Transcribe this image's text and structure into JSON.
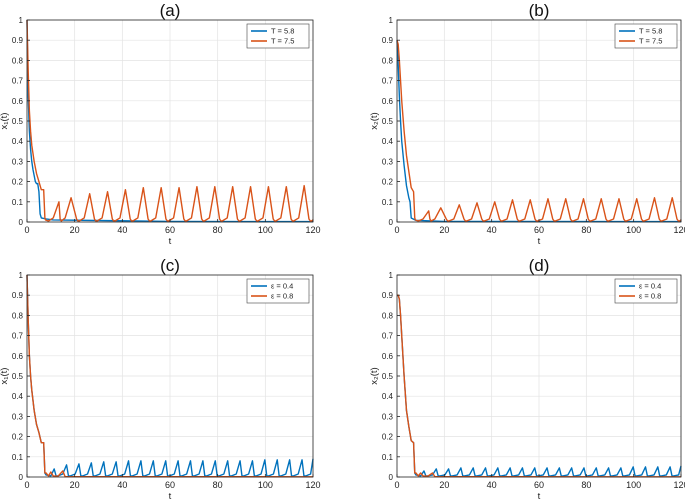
{
  "colors": {
    "series_1": "#0072BD",
    "series_2": "#D95319",
    "grid": "#e3e3e3",
    "axis": "#262626"
  },
  "chart_data": [
    {
      "panel": "(a)",
      "type": "line",
      "xlabel": "t",
      "ylabel": "x₁(t)",
      "xlim": [
        0,
        120
      ],
      "ylim": [
        0,
        1
      ],
      "xticks": [
        0,
        20,
        40,
        60,
        80,
        100,
        120
      ],
      "yticks": [
        0,
        0.1,
        0.2,
        0.3,
        0.4,
        0.5,
        0.6,
        0.7,
        0.8,
        0.9,
        1
      ],
      "grid": true,
      "legend_position": "top-right",
      "series": [
        {
          "name": "T = 5.8",
          "x": [
            0,
            0.5,
            1,
            1.5,
            2,
            2.5,
            3,
            3.5,
            4,
            4.5,
            5,
            5.5,
            6,
            8,
            11,
            60,
            120
          ],
          "y": [
            1,
            0.62,
            0.45,
            0.36,
            0.3,
            0.26,
            0.23,
            0.2,
            0.19,
            0.19,
            0.15,
            0.04,
            0.02,
            0.015,
            0.01,
            0.003,
            0.002
          ]
        },
        {
          "name": "T = 7.5",
          "x": [
            0,
            0.5,
            1,
            1.5,
            2,
            3,
            4,
            5,
            6,
            7,
            7.5,
            7.8,
            9,
            11,
            13.4,
            13.9,
            14.4,
            16,
            18.5,
            20.8,
            21.4,
            21.9,
            24,
            26.3,
            28.3,
            28.9,
            29.4,
            31.5,
            33.8,
            35.8,
            36.4,
            36.9,
            39,
            41.3,
            43.3,
            43.9,
            44.4,
            46.5,
            48.8,
            50.8,
            51.4,
            51.9,
            54,
            56.3,
            58.3,
            58.9,
            59.4,
            61.5,
            63.8,
            65.8,
            66.4,
            66.9,
            69,
            71.3,
            73.3,
            73.9,
            74.4,
            76.5,
            78.8,
            80.8,
            81.4,
            81.9,
            84,
            86.3,
            88.3,
            88.9,
            89.4,
            91.5,
            93.8,
            95.8,
            96.4,
            96.9,
            99,
            101.3,
            103.3,
            103.9,
            104.4,
            106.5,
            108.8,
            110.8,
            111.4,
            111.9,
            114,
            116.3,
            118.3,
            118.9,
            119.4,
            120
          ],
          "y": [
            1,
            0.75,
            0.55,
            0.45,
            0.38,
            0.3,
            0.24,
            0.2,
            0.16,
            0.16,
            0.02,
            0.01,
            0.005,
            0.02,
            0.1,
            0.015,
            0.005,
            0.02,
            0.12,
            0.015,
            0.005,
            0.005,
            0.02,
            0.14,
            0.015,
            0.005,
            0.005,
            0.02,
            0.15,
            0.015,
            0.005,
            0.005,
            0.02,
            0.16,
            0.015,
            0.005,
            0.005,
            0.02,
            0.17,
            0.015,
            0.005,
            0.005,
            0.02,
            0.17,
            0.015,
            0.005,
            0.005,
            0.02,
            0.17,
            0.015,
            0.005,
            0.005,
            0.02,
            0.175,
            0.015,
            0.005,
            0.005,
            0.02,
            0.175,
            0.015,
            0.005,
            0.005,
            0.02,
            0.175,
            0.015,
            0.005,
            0.005,
            0.02,
            0.175,
            0.015,
            0.005,
            0.005,
            0.02,
            0.175,
            0.015,
            0.005,
            0.005,
            0.02,
            0.175,
            0.015,
            0.005,
            0.005,
            0.02,
            0.18,
            0.015,
            0.005,
            0.005,
            0.01
          ]
        }
      ]
    },
    {
      "panel": "(b)",
      "type": "line",
      "xlabel": "t",
      "ylabel": "x₂(t)",
      "xlim": [
        0,
        120
      ],
      "ylim": [
        0,
        1
      ],
      "xticks": [
        0,
        20,
        40,
        60,
        80,
        100,
        120
      ],
      "yticks": [
        0,
        0.1,
        0.2,
        0.3,
        0.4,
        0.5,
        0.6,
        0.7,
        0.8,
        0.9,
        1
      ],
      "grid": true,
      "legend_position": "top-right",
      "series": [
        {
          "name": "T = 5.8",
          "x": [
            0,
            0.5,
            1,
            1.5,
            2,
            3,
            4,
            5,
            5.5,
            6,
            8,
            20,
            120
          ],
          "y": [
            0.9,
            0.78,
            0.62,
            0.5,
            0.4,
            0.28,
            0.18,
            0.12,
            0.1,
            0.02,
            0.008,
            0.003,
            0.002
          ]
        },
        {
          "name": "T = 7.5",
          "x": [
            0,
            0.5,
            1,
            1.5,
            2,
            3,
            4,
            5,
            6,
            7,
            7.5,
            7.8,
            9,
            11,
            13.4,
            13.9,
            14.4,
            16,
            18.5,
            20.8,
            21.4,
            21.9,
            24,
            26.3,
            28.3,
            28.9,
            29.4,
            31.5,
            33.8,
            35.8,
            36.4,
            36.9,
            39,
            41.3,
            43.3,
            43.9,
            44.4,
            46.5,
            48.8,
            50.8,
            51.4,
            51.9,
            54,
            56.3,
            58.3,
            58.9,
            59.4,
            61.5,
            63.8,
            65.8,
            66.4,
            66.9,
            69,
            71.3,
            73.3,
            73.9,
            74.4,
            76.5,
            78.8,
            80.8,
            81.4,
            81.9,
            84,
            86.3,
            88.3,
            88.9,
            89.4,
            91.5,
            93.8,
            95.8,
            96.4,
            96.9,
            99,
            101.3,
            103.3,
            103.9,
            104.4,
            106.5,
            108.8,
            110.8,
            111.4,
            111.9,
            114,
            116.3,
            118.3,
            118.9,
            119.4,
            120
          ],
          "y": [
            0.9,
            0.88,
            0.8,
            0.7,
            0.6,
            0.45,
            0.33,
            0.25,
            0.17,
            0.15,
            0.02,
            0.01,
            0.005,
            0.015,
            0.055,
            0.015,
            0.005,
            0.015,
            0.07,
            0.015,
            0.005,
            0.005,
            0.015,
            0.085,
            0.015,
            0.005,
            0.005,
            0.015,
            0.095,
            0.015,
            0.005,
            0.005,
            0.015,
            0.1,
            0.015,
            0.005,
            0.005,
            0.015,
            0.11,
            0.015,
            0.005,
            0.005,
            0.015,
            0.11,
            0.015,
            0.005,
            0.005,
            0.015,
            0.115,
            0.015,
            0.005,
            0.005,
            0.015,
            0.115,
            0.015,
            0.005,
            0.005,
            0.015,
            0.115,
            0.015,
            0.005,
            0.005,
            0.015,
            0.115,
            0.015,
            0.005,
            0.005,
            0.015,
            0.115,
            0.015,
            0.005,
            0.005,
            0.015,
            0.115,
            0.015,
            0.005,
            0.005,
            0.015,
            0.12,
            0.015,
            0.005,
            0.005,
            0.015,
            0.12,
            0.015,
            0.005,
            0.005,
            0.01
          ]
        }
      ]
    },
    {
      "panel": "(c)",
      "type": "line",
      "xlabel": "t",
      "ylabel": "x₁(t)",
      "xlim": [
        0,
        120
      ],
      "ylim": [
        0,
        1
      ],
      "xticks": [
        0,
        20,
        40,
        60,
        80,
        100,
        120
      ],
      "yticks": [
        0,
        0.1,
        0.2,
        0.3,
        0.4,
        0.5,
        0.6,
        0.7,
        0.8,
        0.9,
        1
      ],
      "grid": true,
      "legend_position": "top-right",
      "series": [
        {
          "name": "ε = 0.4",
          "x": [
            0,
            0.5,
            1,
            1.5,
            2,
            3,
            4,
            5,
            6,
            7,
            7.5,
            8,
            10,
            11.4,
            12.2,
            12.9,
            15,
            16.6,
            17.4,
            18.1,
            20.2,
            21.8,
            22.6,
            23.3,
            25.4,
            27,
            27.8,
            28.5,
            30.6,
            32.2,
            33,
            33.7,
            35.8,
            37.4,
            38.2,
            38.9,
            41,
            42.6,
            43.4,
            44.1,
            46.2,
            47.8,
            48.6,
            49.3,
            51.4,
            53,
            53.8,
            54.5,
            56.6,
            58.2,
            59,
            59.7,
            61.8,
            63.4,
            64.2,
            64.9,
            67,
            68.6,
            69.4,
            70.1,
            72.2,
            73.8,
            74.6,
            75.3,
            77.4,
            79,
            79.8,
            80.5,
            82.6,
            84.2,
            85,
            85.7,
            87.8,
            89.4,
            90.2,
            90.9,
            93,
            94.6,
            95.4,
            96.1,
            98.2,
            99.8,
            100.6,
            101.3,
            103.4,
            105,
            105.8,
            106.5,
            108.6,
            110.2,
            111,
            111.7,
            113.8,
            115.4,
            116.2,
            116.9,
            119,
            120
          ],
          "y": [
            1,
            0.78,
            0.6,
            0.5,
            0.43,
            0.33,
            0.26,
            0.22,
            0.17,
            0.17,
            0.02,
            0.01,
            0.005,
            0.04,
            0.005,
            0.005,
            0.015,
            0.06,
            0.005,
            0.005,
            0.015,
            0.065,
            0.005,
            0.005,
            0.015,
            0.07,
            0.005,
            0.005,
            0.015,
            0.075,
            0.005,
            0.005,
            0.015,
            0.075,
            0.005,
            0.005,
            0.015,
            0.08,
            0.005,
            0.005,
            0.015,
            0.08,
            0.005,
            0.005,
            0.015,
            0.08,
            0.005,
            0.005,
            0.015,
            0.08,
            0.005,
            0.005,
            0.015,
            0.08,
            0.005,
            0.005,
            0.015,
            0.08,
            0.005,
            0.005,
            0.015,
            0.08,
            0.005,
            0.005,
            0.015,
            0.08,
            0.005,
            0.005,
            0.015,
            0.08,
            0.005,
            0.005,
            0.015,
            0.08,
            0.005,
            0.005,
            0.015,
            0.08,
            0.005,
            0.005,
            0.015,
            0.085,
            0.005,
            0.005,
            0.015,
            0.085,
            0.005,
            0.005,
            0.015,
            0.085,
            0.005,
            0.005,
            0.015,
            0.085,
            0.005,
            0.005,
            0.015,
            0.09
          ]
        },
        {
          "name": "ε = 0.8",
          "x": [
            0,
            0.5,
            1,
            1.5,
            2,
            3,
            4,
            5,
            6,
            7,
            7.5,
            8,
            9,
            10,
            11,
            13,
            15,
            16,
            120
          ],
          "y": [
            1,
            0.78,
            0.6,
            0.5,
            0.43,
            0.33,
            0.26,
            0.22,
            0.17,
            0.17,
            0.02,
            0.02,
            0.005,
            0.025,
            0.005,
            0.004,
            0.03,
            0.002,
            0.001
          ]
        }
      ]
    },
    {
      "panel": "(d)",
      "type": "line",
      "xlabel": "t",
      "ylabel": "x₂(t)",
      "xlim": [
        0,
        120
      ],
      "ylim": [
        0,
        1
      ],
      "xticks": [
        0,
        20,
        40,
        60,
        80,
        100,
        120
      ],
      "yticks": [
        0,
        0.1,
        0.2,
        0.3,
        0.4,
        0.5,
        0.6,
        0.7,
        0.8,
        0.9,
        1
      ],
      "grid": true,
      "legend_position": "top-right",
      "series": [
        {
          "name": "ε = 0.4",
          "x": [
            0,
            0.5,
            1,
            1.5,
            2,
            3,
            4,
            5,
            6,
            7,
            7.5,
            8,
            10,
            11.4,
            12.2,
            12.9,
            15,
            16.6,
            17.4,
            18.1,
            20.2,
            21.8,
            22.6,
            23.3,
            25.4,
            27,
            27.8,
            28.5,
            30.6,
            32.2,
            33,
            33.7,
            35.8,
            37.4,
            38.2,
            38.9,
            41,
            42.6,
            43.4,
            44.1,
            46.2,
            47.8,
            48.6,
            49.3,
            51.4,
            53,
            53.8,
            54.5,
            56.6,
            58.2,
            59,
            59.7,
            61.8,
            63.4,
            64.2,
            64.9,
            67,
            68.6,
            69.4,
            70.1,
            72.2,
            73.8,
            74.6,
            75.3,
            77.4,
            79,
            79.8,
            80.5,
            82.6,
            84.2,
            85,
            85.7,
            87.8,
            89.4,
            90.2,
            90.9,
            93,
            94.6,
            95.4,
            96.1,
            98.2,
            99.8,
            100.6,
            101.3,
            103.4,
            105,
            105.8,
            106.5,
            108.6,
            110.2,
            111,
            111.7,
            113.8,
            115.4,
            116.2,
            116.9,
            119,
            120
          ],
          "y": [
            0.9,
            0.9,
            0.88,
            0.8,
            0.7,
            0.5,
            0.33,
            0.25,
            0.18,
            0.17,
            0.02,
            0.01,
            0.005,
            0.03,
            0.005,
            0.005,
            0.01,
            0.04,
            0.005,
            0.005,
            0.01,
            0.04,
            0.005,
            0.005,
            0.01,
            0.045,
            0.005,
            0.005,
            0.01,
            0.045,
            0.005,
            0.005,
            0.01,
            0.045,
            0.005,
            0.005,
            0.01,
            0.045,
            0.005,
            0.005,
            0.01,
            0.045,
            0.005,
            0.005,
            0.01,
            0.045,
            0.005,
            0.005,
            0.01,
            0.045,
            0.005,
            0.005,
            0.01,
            0.045,
            0.005,
            0.005,
            0.01,
            0.045,
            0.005,
            0.005,
            0.01,
            0.045,
            0.005,
            0.005,
            0.01,
            0.045,
            0.005,
            0.005,
            0.01,
            0.045,
            0.005,
            0.005,
            0.01,
            0.045,
            0.005,
            0.005,
            0.01,
            0.045,
            0.005,
            0.005,
            0.01,
            0.05,
            0.005,
            0.005,
            0.01,
            0.05,
            0.005,
            0.005,
            0.01,
            0.05,
            0.005,
            0.005,
            0.01,
            0.05,
            0.005,
            0.005,
            0.01,
            0.055
          ]
        },
        {
          "name": "ε = 0.8",
          "x": [
            0,
            0.5,
            1,
            1.5,
            2,
            3,
            4,
            5,
            6,
            7,
            7.5,
            8,
            9,
            10,
            11,
            13,
            15,
            16,
            120
          ],
          "y": [
            0.9,
            0.9,
            0.88,
            0.8,
            0.7,
            0.5,
            0.33,
            0.25,
            0.18,
            0.17,
            0.02,
            0.02,
            0.005,
            0.02,
            0.005,
            0.004,
            0.02,
            0.002,
            0.001
          ]
        }
      ]
    }
  ]
}
